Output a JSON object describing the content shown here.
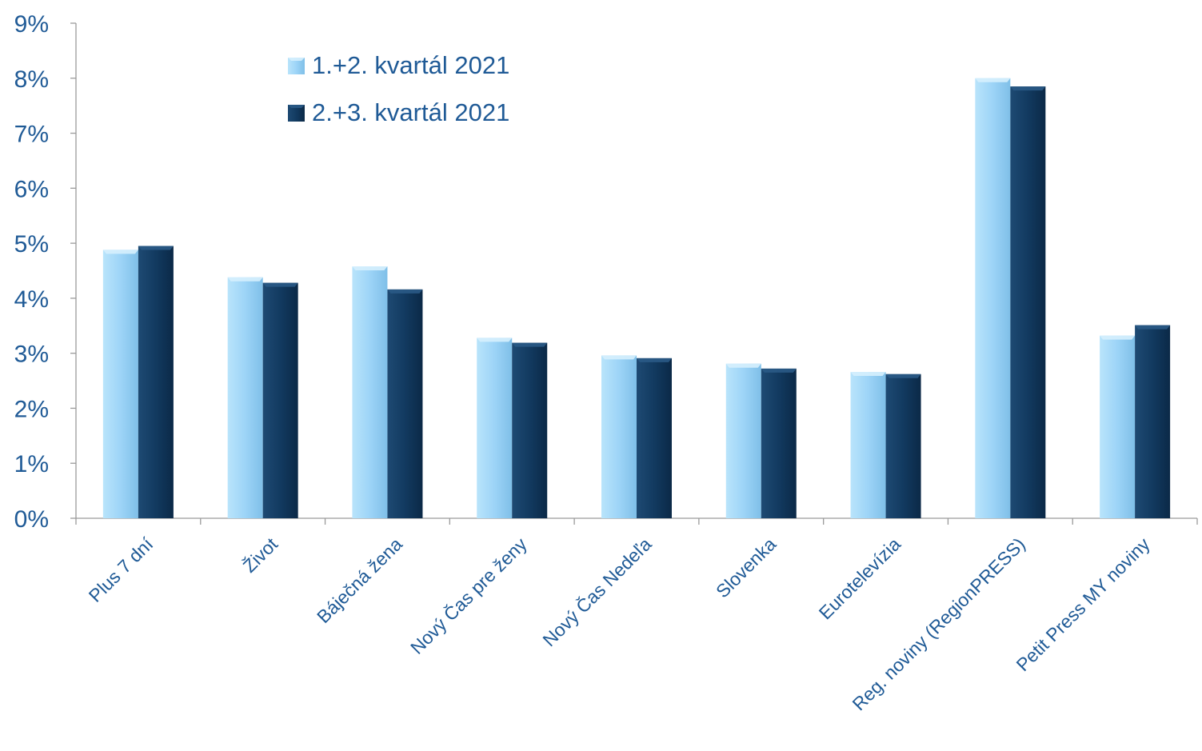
{
  "chart_data": {
    "type": "bar",
    "title": "",
    "xlabel": "",
    "ylabel": "",
    "categories": [
      "Plus 7 dní",
      "Život",
      "Báječná žena",
      "Nový Čas pre ženy",
      "Nový Čas Nedeľa",
      "Slovenka",
      "Eurotelevízia",
      "Reg. noviny (RegionPRESS)",
      "Petit Press MY noviny"
    ],
    "series": [
      {
        "name": "1.+2. kvartál 2021",
        "color": "#9dd4f7",
        "values": [
          4.88,
          4.38,
          4.58,
          3.28,
          2.96,
          2.81,
          2.66,
          8.0,
          3.32
        ]
      },
      {
        "name": "2.+3. kvartál 2021",
        "color": "#123a60",
        "values": [
          4.95,
          4.28,
          4.16,
          3.19,
          2.91,
          2.72,
          2.62,
          7.85,
          3.51
        ]
      }
    ],
    "ylim": [
      0,
      9
    ],
    "yticks": [
      0,
      1,
      2,
      3,
      4,
      5,
      6,
      7,
      8,
      9
    ],
    "ytick_format": "percent",
    "legend_position": "top-left-inside",
    "grid": false,
    "text_color": "#1f5a96",
    "axis_color": "#9a9a9a"
  }
}
